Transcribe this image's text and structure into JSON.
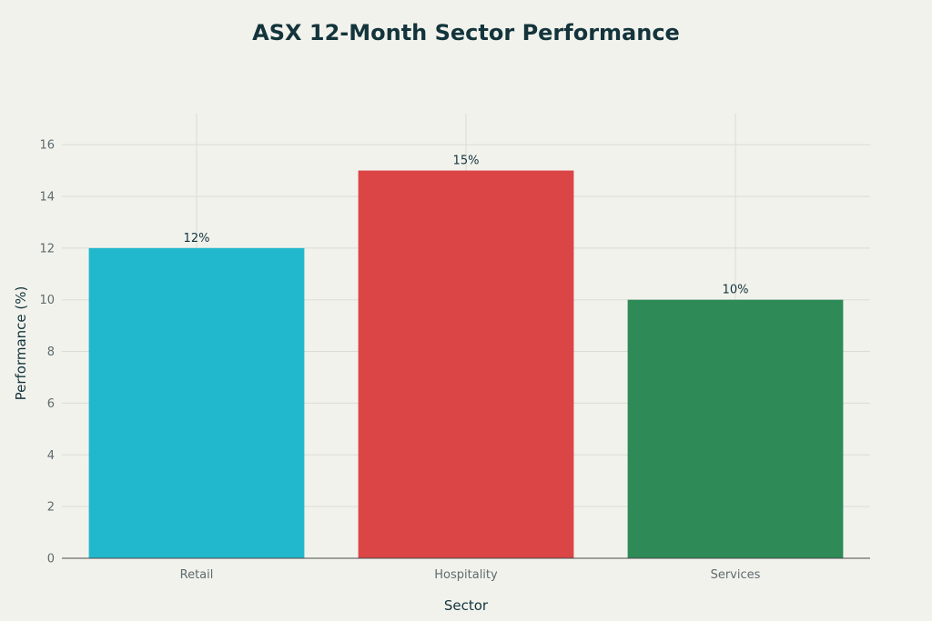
{
  "chart_data": {
    "type": "bar",
    "title": "ASX 12-Month Sector Performance",
    "xlabel": "Sector",
    "ylabel": "Performance (%)",
    "categories": [
      "Retail",
      "Hospitality",
      "Services"
    ],
    "values": [
      12,
      15,
      10
    ],
    "data_labels": [
      "12%",
      "15%",
      "10%"
    ],
    "colors": [
      "#21b8cd",
      "#db4545",
      "#2e8b57"
    ],
    "ylim": [
      0,
      17.2
    ],
    "yticks": [
      0,
      2,
      4,
      6,
      8,
      10,
      12,
      14,
      16
    ],
    "grid": true,
    "legend": "none"
  }
}
